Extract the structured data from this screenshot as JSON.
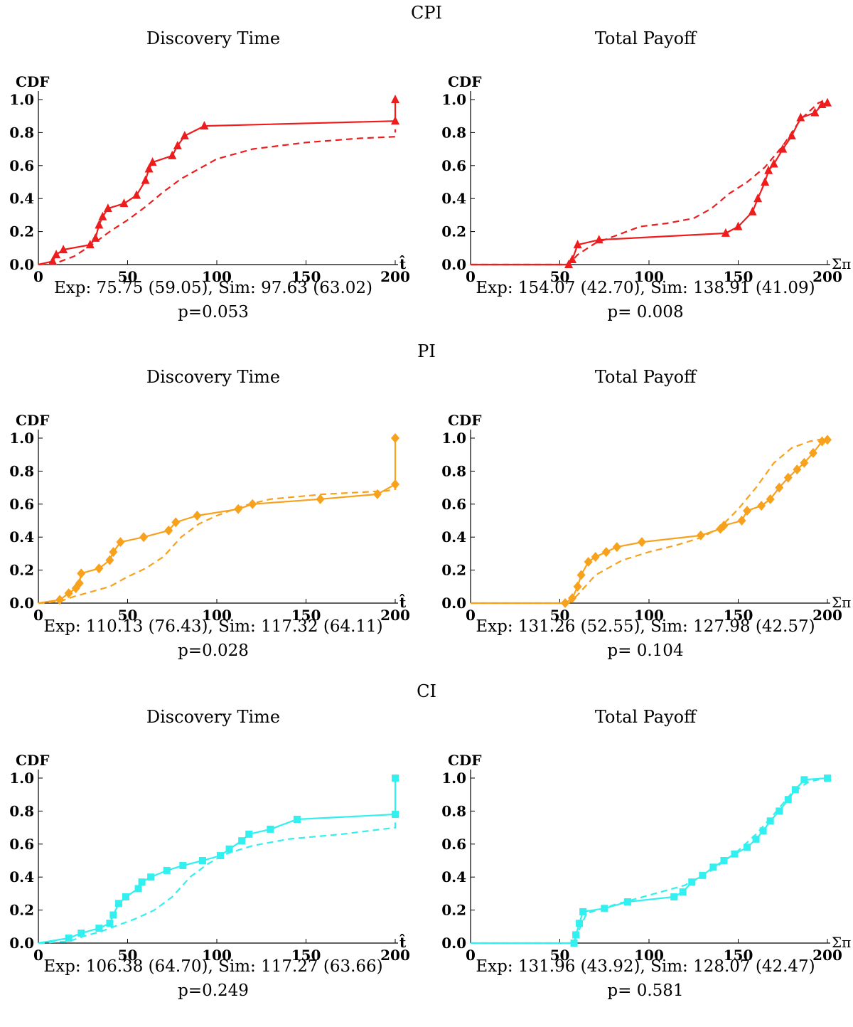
{
  "rows": [
    {
      "title": "CPI",
      "color": "#ee1c1c",
      "marker": "triangle",
      "panels": [
        {
          "title": "Discovery Time",
          "stats": "Exp: 75.75 (59.05), Sim: 97.63 (63.02)",
          "pvalue": "p=0.053",
          "chart_data": {
            "type": "line",
            "ylabel": "CDF",
            "xlabel": "t̂",
            "xlim": [
              0,
              200
            ],
            "ylim": [
              0,
              1
            ],
            "xticks": [
              0,
              50,
              100,
              150,
              200
            ],
            "yticks": [
              0.0,
              0.2,
              0.4,
              0.6,
              0.8,
              1.0
            ],
            "series": [
              {
                "style": "solid-markers",
                "x": [
                  0,
                  8,
                  10,
                  14,
                  29,
                  32,
                  34,
                  36,
                  39,
                  48,
                  55,
                  60,
                  62,
                  64,
                  75,
                  78,
                  82,
                  93,
                  200,
                  200
                ],
                "y": [
                  0,
                  0.02,
                  0.06,
                  0.09,
                  0.12,
                  0.16,
                  0.24,
                  0.29,
                  0.34,
                  0.37,
                  0.42,
                  0.51,
                  0.58,
                  0.62,
                  0.66,
                  0.72,
                  0.78,
                  0.84,
                  0.87,
                  1.0
                ]
              },
              {
                "style": "dashed",
                "x": [
                  0,
                  10,
                  20,
                  30,
                  40,
                  50,
                  60,
                  70,
                  80,
                  90,
                  100,
                  120,
                  150,
                  180,
                  200,
                  200
                ],
                "y": [
                  0,
                  0.01,
                  0.05,
                  0.12,
                  0.2,
                  0.27,
                  0.35,
                  0.44,
                  0.52,
                  0.58,
                  0.64,
                  0.7,
                  0.74,
                  0.765,
                  0.775,
                  0.82
                ]
              }
            ]
          }
        },
        {
          "title": "Total Payoff",
          "stats": "Exp: 154.07 (42.70), Sim: 138.91 (41.09)",
          "pvalue": "p= 0.008",
          "chart_data": {
            "type": "line",
            "ylabel": "CDF",
            "xlabel": "Σπ",
            "xlim": [
              0,
              200
            ],
            "ylim": [
              0,
              1
            ],
            "xticks": [
              0,
              50,
              100,
              150,
              200
            ],
            "yticks": [
              0.0,
              0.2,
              0.4,
              0.6,
              0.8,
              1.0
            ],
            "series": [
              {
                "style": "solid-markers",
                "x": [
                  0,
                  55,
                  57,
                  60,
                  72,
                  143,
                  150,
                  158,
                  161,
                  165,
                  167,
                  170,
                  175,
                  180,
                  185,
                  193,
                  197,
                  200
                ],
                "y": [
                  0,
                  0,
                  0.03,
                  0.12,
                  0.15,
                  0.19,
                  0.23,
                  0.32,
                  0.4,
                  0.5,
                  0.57,
                  0.61,
                  0.7,
                  0.78,
                  0.89,
                  0.92,
                  0.97,
                  0.98
                ]
              },
              {
                "style": "dashed",
                "x": [
                  0,
                  55,
                  60,
                  70,
                  80,
                  95,
                  110,
                  125,
                  135,
                  145,
                  155,
                  165,
                  175,
                  185,
                  195,
                  200
                ],
                "y": [
                  0,
                  0,
                  0.06,
                  0.13,
                  0.17,
                  0.23,
                  0.25,
                  0.28,
                  0.34,
                  0.43,
                  0.5,
                  0.59,
                  0.72,
                  0.88,
                  0.98,
                  1.0
                ]
              }
            ]
          }
        }
      ]
    },
    {
      "title": "PI",
      "color": "#f7a11c",
      "marker": "diamond",
      "panels": [
        {
          "title": "Discovery Time",
          "stats": "Exp: 110.13 (76.43), Sim: 117.32 (64.11)",
          "pvalue": "p=0.028",
          "chart_data": {
            "type": "line",
            "ylabel": "CDF",
            "xlabel": "t̂",
            "xlim": [
              0,
              200
            ],
            "ylim": [
              0,
              1
            ],
            "xticks": [
              0,
              50,
              100,
              150,
              200
            ],
            "yticks": [
              0.0,
              0.2,
              0.4,
              0.6,
              0.8,
              1.0
            ],
            "series": [
              {
                "style": "solid-markers",
                "x": [
                  0,
                  12,
                  17,
                  21,
                  23,
                  24,
                  34,
                  40,
                  42,
                  46,
                  59,
                  73,
                  77,
                  89,
                  112,
                  120,
                  158,
                  190,
                  200,
                  200
                ],
                "y": [
                  0,
                  0.02,
                  0.06,
                  0.09,
                  0.12,
                  0.18,
                  0.21,
                  0.26,
                  0.31,
                  0.37,
                  0.4,
                  0.44,
                  0.49,
                  0.53,
                  0.57,
                  0.6,
                  0.63,
                  0.66,
                  0.72,
                  1.0
                ]
              },
              {
                "style": "dashed",
                "x": [
                  0,
                  12,
                  20,
                  30,
                  40,
                  50,
                  60,
                  70,
                  80,
                  90,
                  100,
                  115,
                  130,
                  160,
                  195,
                  200,
                  200
                ],
                "y": [
                  0,
                  0.01,
                  0.04,
                  0.07,
                  0.1,
                  0.16,
                  0.21,
                  0.28,
                  0.4,
                  0.48,
                  0.53,
                  0.59,
                  0.63,
                  0.66,
                  0.68,
                  0.69,
                  0.74
                ]
              }
            ]
          }
        },
        {
          "title": "Total Payoff",
          "stats": "Exp: 131.26 (52.55), Sim: 127.98 (42.57)",
          "pvalue": "p= 0.104",
          "chart_data": {
            "type": "line",
            "ylabel": "CDF",
            "xlabel": "Σπ",
            "xlim": [
              0,
              200
            ],
            "ylim": [
              0,
              1
            ],
            "xticks": [
              0,
              50,
              100,
              150,
              200
            ],
            "yticks": [
              0.0,
              0.2,
              0.4,
              0.6,
              0.8,
              1.0
            ],
            "series": [
              {
                "style": "solid-markers",
                "x": [
                  0,
                  53,
                  57,
                  60,
                  62,
                  66,
                  70,
                  76,
                  82,
                  96,
                  129,
                  140,
                  142,
                  152,
                  155,
                  163,
                  168,
                  173,
                  178,
                  183,
                  187,
                  192,
                  197,
                  200
                ],
                "y": [
                  0,
                  0,
                  0.03,
                  0.1,
                  0.17,
                  0.25,
                  0.28,
                  0.31,
                  0.34,
                  0.37,
                  0.41,
                  0.45,
                  0.47,
                  0.5,
                  0.56,
                  0.59,
                  0.63,
                  0.7,
                  0.76,
                  0.81,
                  0.85,
                  0.91,
                  0.98,
                  0.99
                ]
              },
              {
                "style": "dashed",
                "x": [
                  0,
                  55,
                  60,
                  70,
                  85,
                  100,
                  115,
                  130,
                  140,
                  150,
                  160,
                  170,
                  180,
                  190,
                  200
                ],
                "y": [
                  0,
                  0,
                  0.05,
                  0.17,
                  0.26,
                  0.31,
                  0.35,
                  0.4,
                  0.46,
                  0.57,
                  0.7,
                  0.85,
                  0.94,
                  0.98,
                  1.0
                ]
              }
            ]
          }
        }
      ]
    },
    {
      "title": "CI",
      "color": "#33f0f0",
      "marker": "square",
      "panels": [
        {
          "title": "Discovery Time",
          "stats": "Exp: 106.38 (64.70), Sim: 117.27 (63.66)",
          "pvalue": "p=0.249",
          "chart_data": {
            "type": "line",
            "ylabel": "CDF",
            "xlabel": "t̂",
            "xlim": [
              0,
              200
            ],
            "ylim": [
              0,
              1
            ],
            "xticks": [
              0,
              50,
              100,
              150,
              200
            ],
            "yticks": [
              0.0,
              0.2,
              0.4,
              0.6,
              0.8,
              1.0
            ],
            "series": [
              {
                "style": "solid-markers",
                "x": [
                  0,
                  17,
                  24,
                  34,
                  40,
                  42,
                  45,
                  49,
                  56,
                  58,
                  63,
                  72,
                  81,
                  92,
                  102,
                  107,
                  114,
                  118,
                  130,
                  145,
                  200,
                  200
                ],
                "y": [
                  0,
                  0.03,
                  0.06,
                  0.09,
                  0.12,
                  0.17,
                  0.24,
                  0.28,
                  0.33,
                  0.37,
                  0.4,
                  0.44,
                  0.47,
                  0.5,
                  0.53,
                  0.57,
                  0.62,
                  0.66,
                  0.69,
                  0.75,
                  0.78,
                  1.0
                ]
              },
              {
                "style": "dashed",
                "x": [
                  0,
                  17,
                  25,
                  35,
                  45,
                  55,
                  65,
                  75,
                  85,
                  95,
                  105,
                  120,
                  140,
                  170,
                  200,
                  200
                ],
                "y": [
                  0,
                  0.01,
                  0.04,
                  0.07,
                  0.11,
                  0.15,
                  0.2,
                  0.28,
                  0.4,
                  0.48,
                  0.54,
                  0.59,
                  0.63,
                  0.66,
                  0.7,
                  0.75
                ]
              }
            ]
          }
        },
        {
          "title": "Total Payoff",
          "stats": "Exp: 131.96 (43.92), Sim: 128.07 (42.47)",
          "pvalue": "p= 0.581",
          "chart_data": {
            "type": "line",
            "ylabel": "CDF",
            "xlabel": "Σπ",
            "xlim": [
              0,
              200
            ],
            "ylim": [
              0,
              1
            ],
            "xticks": [
              0,
              50,
              100,
              150,
              200
            ],
            "yticks": [
              0.0,
              0.2,
              0.4,
              0.6,
              0.8,
              1.0
            ],
            "series": [
              {
                "style": "solid-markers",
                "x": [
                  0,
                  58,
                  59,
                  61,
                  63,
                  75,
                  88,
                  114,
                  119,
                  124,
                  130,
                  136,
                  142,
                  148,
                  155,
                  160,
                  164,
                  168,
                  173,
                  178,
                  182,
                  187,
                  200
                ],
                "y": [
                  0,
                  0,
                  0.05,
                  0.12,
                  0.19,
                  0.21,
                  0.25,
                  0.28,
                  0.31,
                  0.37,
                  0.41,
                  0.46,
                  0.5,
                  0.54,
                  0.58,
                  0.63,
                  0.68,
                  0.74,
                  0.8,
                  0.87,
                  0.93,
                  0.99,
                  1.0
                ]
              },
              {
                "style": "dashed",
                "x": [
                  0,
                  58,
                  60,
                  65,
                  80,
                  100,
                  120,
                  135,
                  150,
                  160,
                  170,
                  180,
                  190,
                  200
                ],
                "y": [
                  0,
                  0,
                  0.06,
                  0.18,
                  0.23,
                  0.29,
                  0.35,
                  0.44,
                  0.56,
                  0.66,
                  0.78,
                  0.91,
                  0.98,
                  1.0
                ]
              }
            ]
          }
        }
      ]
    }
  ]
}
